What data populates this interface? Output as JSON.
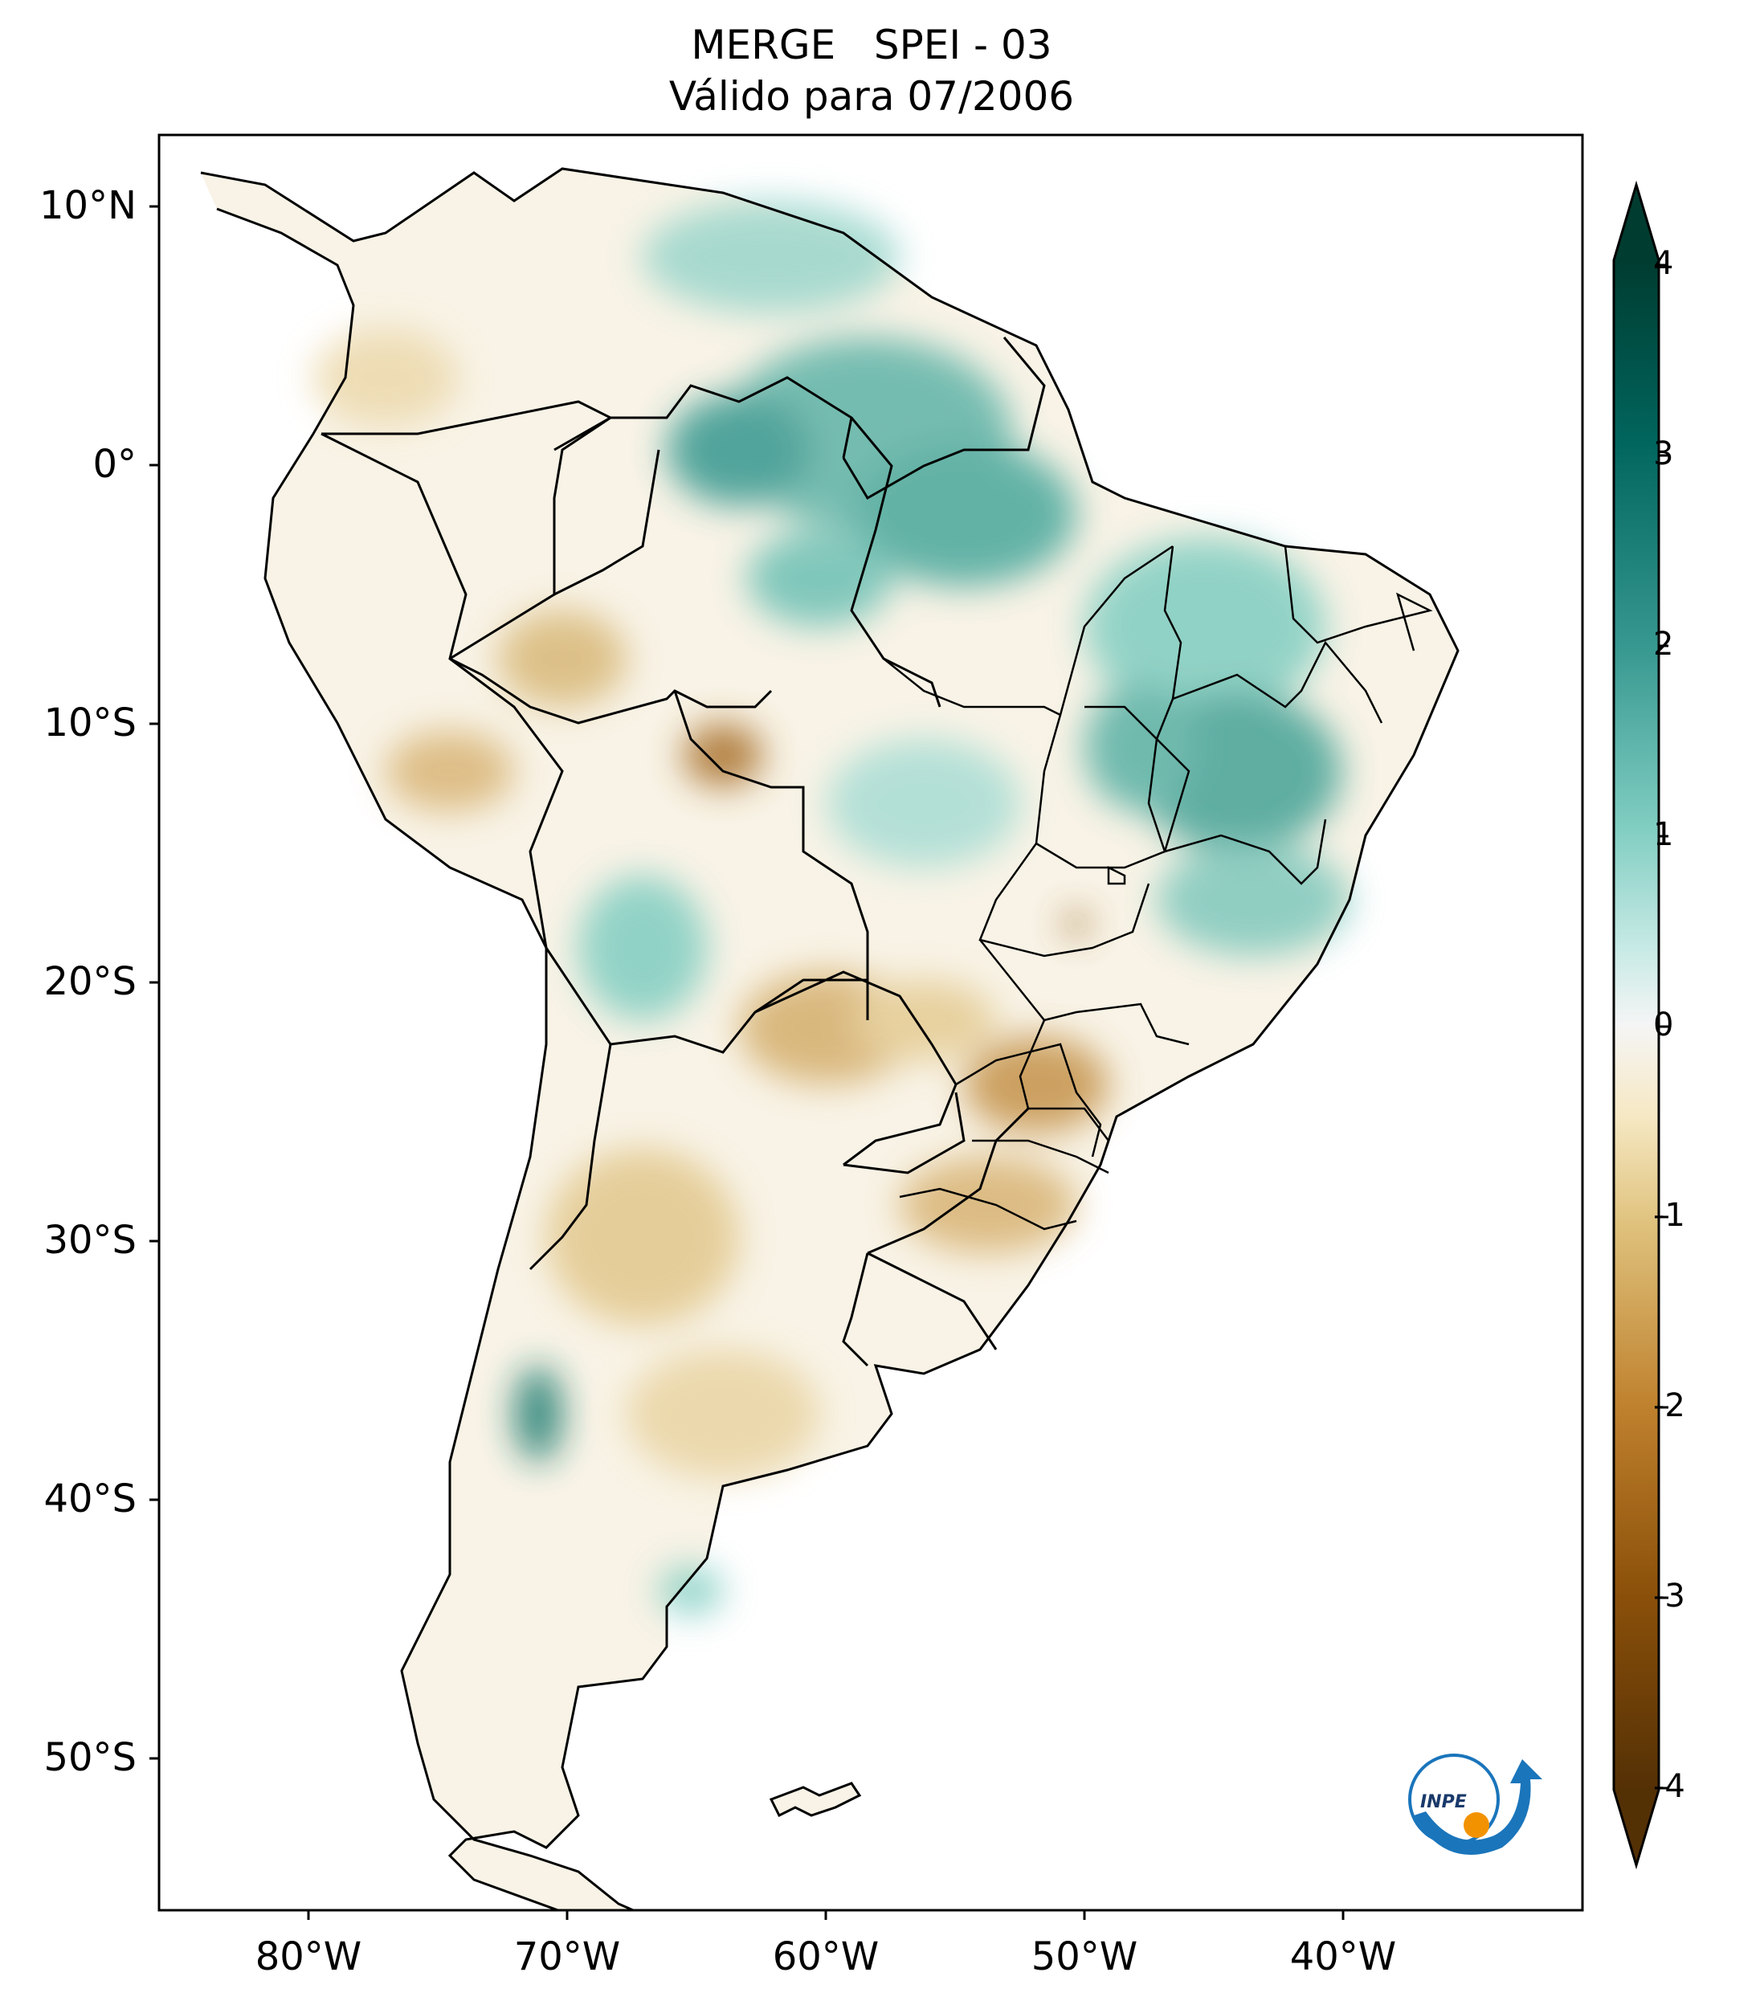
{
  "title": {
    "line1": "MERGE   SPEI - 03",
    "line2": "Válido para 07/2006"
  },
  "lat_ticks": [
    "10°N",
    "0°",
    "10°S",
    "20°S",
    "30°S",
    "40°S",
    "50°S"
  ],
  "lon_ticks": [
    "80°W",
    "70°W",
    "60°W",
    "50°W",
    "40°W"
  ],
  "colorbar": {
    "ticks": [
      "4",
      "3",
      "2",
      "1",
      "0",
      "-1",
      "-2",
      "-3",
      "-4"
    ],
    "colors": {
      "max": "#003c30",
      "wet": "#35978f",
      "light_wet": "#c7eae5",
      "neutral": "#f5f5f5",
      "light_dry": "#f6e8c3",
      "dry": "#bf812d",
      "min": "#543005"
    }
  },
  "logo": {
    "text": "INPE"
  }
}
